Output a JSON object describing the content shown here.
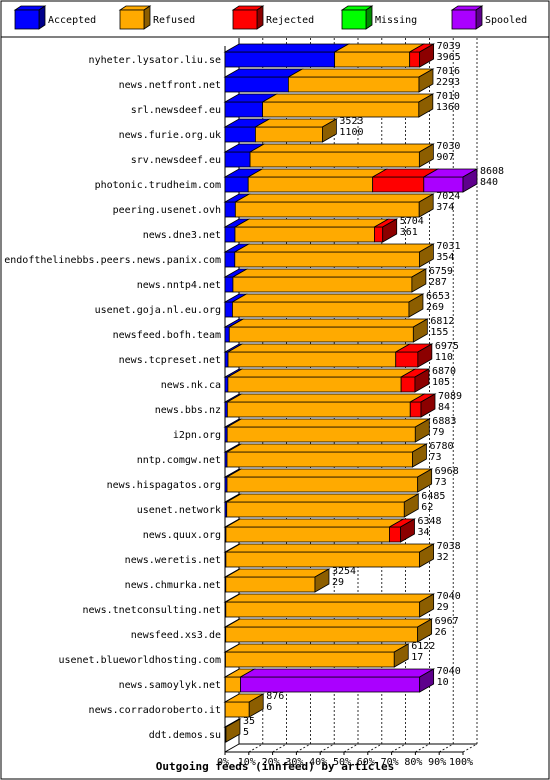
{
  "chart_data": {
    "type": "bar",
    "orientation": "horizontal",
    "stacked": true,
    "title": "Outgoing feeds (innfeed) by articles",
    "xlim": [
      0,
      100
    ],
    "x_ticks": [
      "0%",
      "10%",
      "20%",
      "30%",
      "40%",
      "50%",
      "60%",
      "70%",
      "80%",
      "90%",
      "100%"
    ],
    "legend_position": "top",
    "legend": [
      {
        "name": "Accepted",
        "color": "#0000ff"
      },
      {
        "name": "Refused",
        "color": "#ffaa00"
      },
      {
        "name": "Rejected",
        "color": "#ff0000"
      },
      {
        "name": "Missing",
        "color": "#00ff00"
      },
      {
        "name": "Spooled",
        "color": "#aa00ff"
      }
    ],
    "rows": [
      {
        "name": "nyheter.lysator.liu.se",
        "total": "7039",
        "accepted": "3965",
        "parts": [
          3965,
          2714,
          360,
          0,
          0
        ]
      },
      {
        "name": "news.netfront.net",
        "total": "7016",
        "accepted": "2293",
        "parts": [
          2293,
          4723,
          0,
          0,
          0
        ]
      },
      {
        "name": "srl.newsdeef.eu",
        "total": "7010",
        "accepted": "1360",
        "parts": [
          1360,
          5650,
          0,
          0,
          0
        ]
      },
      {
        "name": "news.furie.org.uk",
        "total": "3523",
        "accepted": "1100",
        "parts": [
          1100,
          2423,
          0,
          0,
          0
        ]
      },
      {
        "name": "srv.newsdeef.eu",
        "total": "7030",
        "accepted": "907",
        "parts": [
          907,
          6123,
          0,
          0,
          0
        ]
      },
      {
        "name": "photonic.trudheim.com",
        "total": "8608",
        "accepted": "840",
        "parts": [
          840,
          4500,
          1850,
          0,
          1418
        ]
      },
      {
        "name": "peering.usenet.ovh",
        "total": "7024",
        "accepted": "374",
        "parts": [
          374,
          6650,
          0,
          0,
          0
        ]
      },
      {
        "name": "news.dne3.net",
        "total": "5704",
        "accepted": "361",
        "parts": [
          361,
          5043,
          300,
          0,
          0
        ]
      },
      {
        "name": "endofthelinebbs.peers.news.panix.com",
        "total": "7031",
        "accepted": "354",
        "parts": [
          354,
          6677,
          0,
          0,
          0
        ]
      },
      {
        "name": "news.nntp4.net",
        "total": "6759",
        "accepted": "287",
        "parts": [
          287,
          6472,
          0,
          0,
          0
        ]
      },
      {
        "name": "usenet.goja.nl.eu.org",
        "total": "6653",
        "accepted": "269",
        "parts": [
          269,
          6384,
          0,
          0,
          0
        ]
      },
      {
        "name": "newsfeed.bofh.team",
        "total": "6812",
        "accepted": "155",
        "parts": [
          155,
          6657,
          0,
          0,
          0
        ]
      },
      {
        "name": "news.tcpreset.net",
        "total": "6975",
        "accepted": "110",
        "parts": [
          110,
          6065,
          800,
          0,
          0
        ]
      },
      {
        "name": "news.nk.ca",
        "total": "6870",
        "accepted": "105",
        "parts": [
          105,
          6265,
          500,
          0,
          0
        ]
      },
      {
        "name": "news.bbs.nz",
        "total": "7089",
        "accepted": "84",
        "parts": [
          84,
          6616,
          389,
          0,
          0
        ]
      },
      {
        "name": "i2pn.org",
        "total": "6883",
        "accepted": "79",
        "parts": [
          79,
          6804,
          0,
          0,
          0
        ]
      },
      {
        "name": "nntp.comgw.net",
        "total": "6780",
        "accepted": "73",
        "parts": [
          73,
          6707,
          0,
          0,
          0
        ]
      },
      {
        "name": "news.hispagatos.org",
        "total": "6968",
        "accepted": "73",
        "parts": [
          73,
          6895,
          0,
          0,
          0
        ]
      },
      {
        "name": "usenet.network",
        "total": "6485",
        "accepted": "62",
        "parts": [
          62,
          6423,
          0,
          0,
          0
        ]
      },
      {
        "name": "news.quux.org",
        "total": "6348",
        "accepted": "34",
        "parts": [
          34,
          5914,
          400,
          0,
          0
        ]
      },
      {
        "name": "news.weretis.net",
        "total": "7038",
        "accepted": "32",
        "parts": [
          32,
          7006,
          0,
          0,
          0
        ]
      },
      {
        "name": "news.chmurka.net",
        "total": "3254",
        "accepted": "29",
        "parts": [
          29,
          3225,
          0,
          0,
          0
        ]
      },
      {
        "name": "news.tnetconsulting.net",
        "total": "7040",
        "accepted": "29",
        "parts": [
          29,
          7011,
          0,
          0,
          0
        ]
      },
      {
        "name": "newsfeed.xs3.de",
        "total": "6967",
        "accepted": "26",
        "parts": [
          26,
          6941,
          0,
          0,
          0
        ]
      },
      {
        "name": "usenet.blueworldhosting.com",
        "total": "6122",
        "accepted": "17",
        "parts": [
          17,
          6105,
          0,
          0,
          0
        ]
      },
      {
        "name": "news.samoylyk.net",
        "total": "7040",
        "accepted": "10",
        "parts": [
          10,
          550,
          0,
          0,
          6480
        ]
      },
      {
        "name": "news.corradoroberto.it",
        "total": "876",
        "accepted": "6",
        "parts": [
          6,
          870,
          0,
          0,
          0
        ]
      },
      {
        "name": "ddt.demos.su",
        "total": "35",
        "accepted": "5",
        "parts": [
          5,
          30,
          0,
          0,
          0
        ]
      }
    ]
  }
}
